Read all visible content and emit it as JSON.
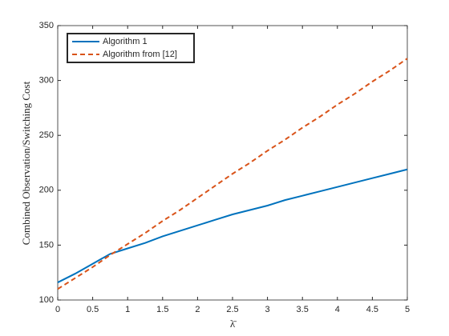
{
  "chart_data": {
    "type": "line",
    "xlabel": "λ̄",
    "ylabel": "Combined Observation/Switching Cost",
    "x": [
      0,
      0.25,
      0.5,
      0.75,
      1,
      1.25,
      1.5,
      1.75,
      2,
      2.25,
      2.5,
      2.75,
      3,
      3.25,
      3.5,
      3.75,
      4,
      4.25,
      4.5,
      4.75,
      5
    ],
    "series": [
      {
        "name": "Algorithm 1",
        "color": "#0072bd",
        "line_style": "solid",
        "values": [
          116,
          124,
          133,
          142,
          147,
          152,
          158,
          163,
          168,
          173,
          178,
          182,
          186,
          191,
          195,
          199,
          203,
          207,
          211,
          215,
          219
        ]
      },
      {
        "name": "Algorithm from [12]",
        "color": "#d95319",
        "line_style": "dashed",
        "values": [
          110,
          120,
          130,
          141,
          151,
          161,
          172,
          182,
          193,
          204,
          215,
          225,
          236,
          246,
          257,
          267,
          278,
          288,
          299,
          309,
          320
        ]
      }
    ],
    "xlim": [
      0,
      5
    ],
    "xticks": [
      0,
      0.5,
      1,
      1.5,
      2,
      2.5,
      3,
      3.5,
      4,
      4.5,
      5
    ],
    "ylim": [
      100,
      350
    ],
    "yticks": [
      100,
      150,
      200,
      250,
      300,
      350
    ],
    "grid": false,
    "legend_location": "northwest"
  }
}
